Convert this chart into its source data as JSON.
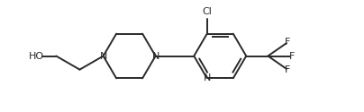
{
  "background_color": "#ffffff",
  "line_color": "#2a2a2a",
  "text_color": "#2a2a2a",
  "line_width": 1.4,
  "font_size": 8.0,
  "figsize": [
    4.04,
    1.25
  ],
  "dpi": 100,
  "xlim": [
    0,
    10
  ],
  "ylim": [
    0,
    3.1
  ]
}
